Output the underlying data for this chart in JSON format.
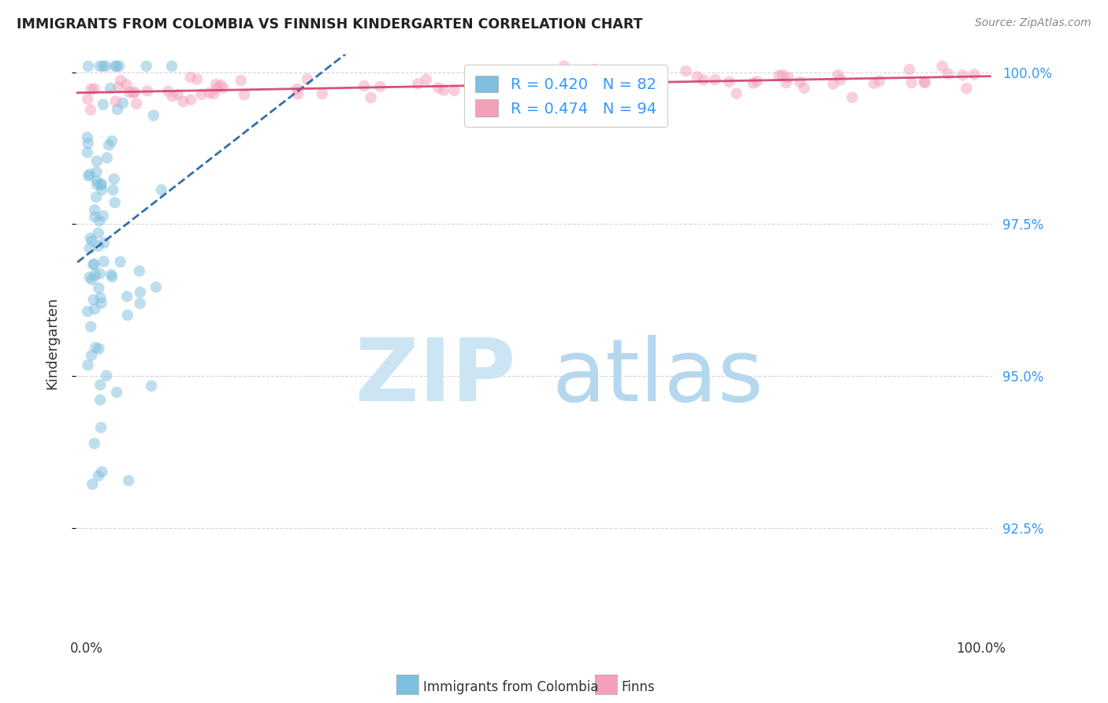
{
  "title": "IMMIGRANTS FROM COLOMBIA VS FINNISH KINDERGARTEN CORRELATION CHART",
  "source": "Source: ZipAtlas.com",
  "ylabel": "Kindergarten",
  "ytick_labels": [
    "92.5%",
    "95.0%",
    "97.5%",
    "100.0%"
  ],
  "ytick_values": [
    0.925,
    0.95,
    0.975,
    1.0
  ],
  "xlim": [
    0.0,
    1.0
  ],
  "ylim": [
    0.908,
    1.003
  ],
  "legend_label1": "Immigrants from Colombia",
  "legend_label2": "Finns",
  "r1": 0.42,
  "n1": 82,
  "r2": 0.474,
  "n2": 94,
  "color_blue": "#7fbfdf",
  "color_pink": "#f4a0b8",
  "color_blue_line": "#2060a0",
  "color_pink_line": "#d04070",
  "color_title": "#222222",
  "color_source": "#888888",
  "color_ytick": "#3399ff",
  "background": "#ffffff",
  "watermark_color": "#cce5f5"
}
